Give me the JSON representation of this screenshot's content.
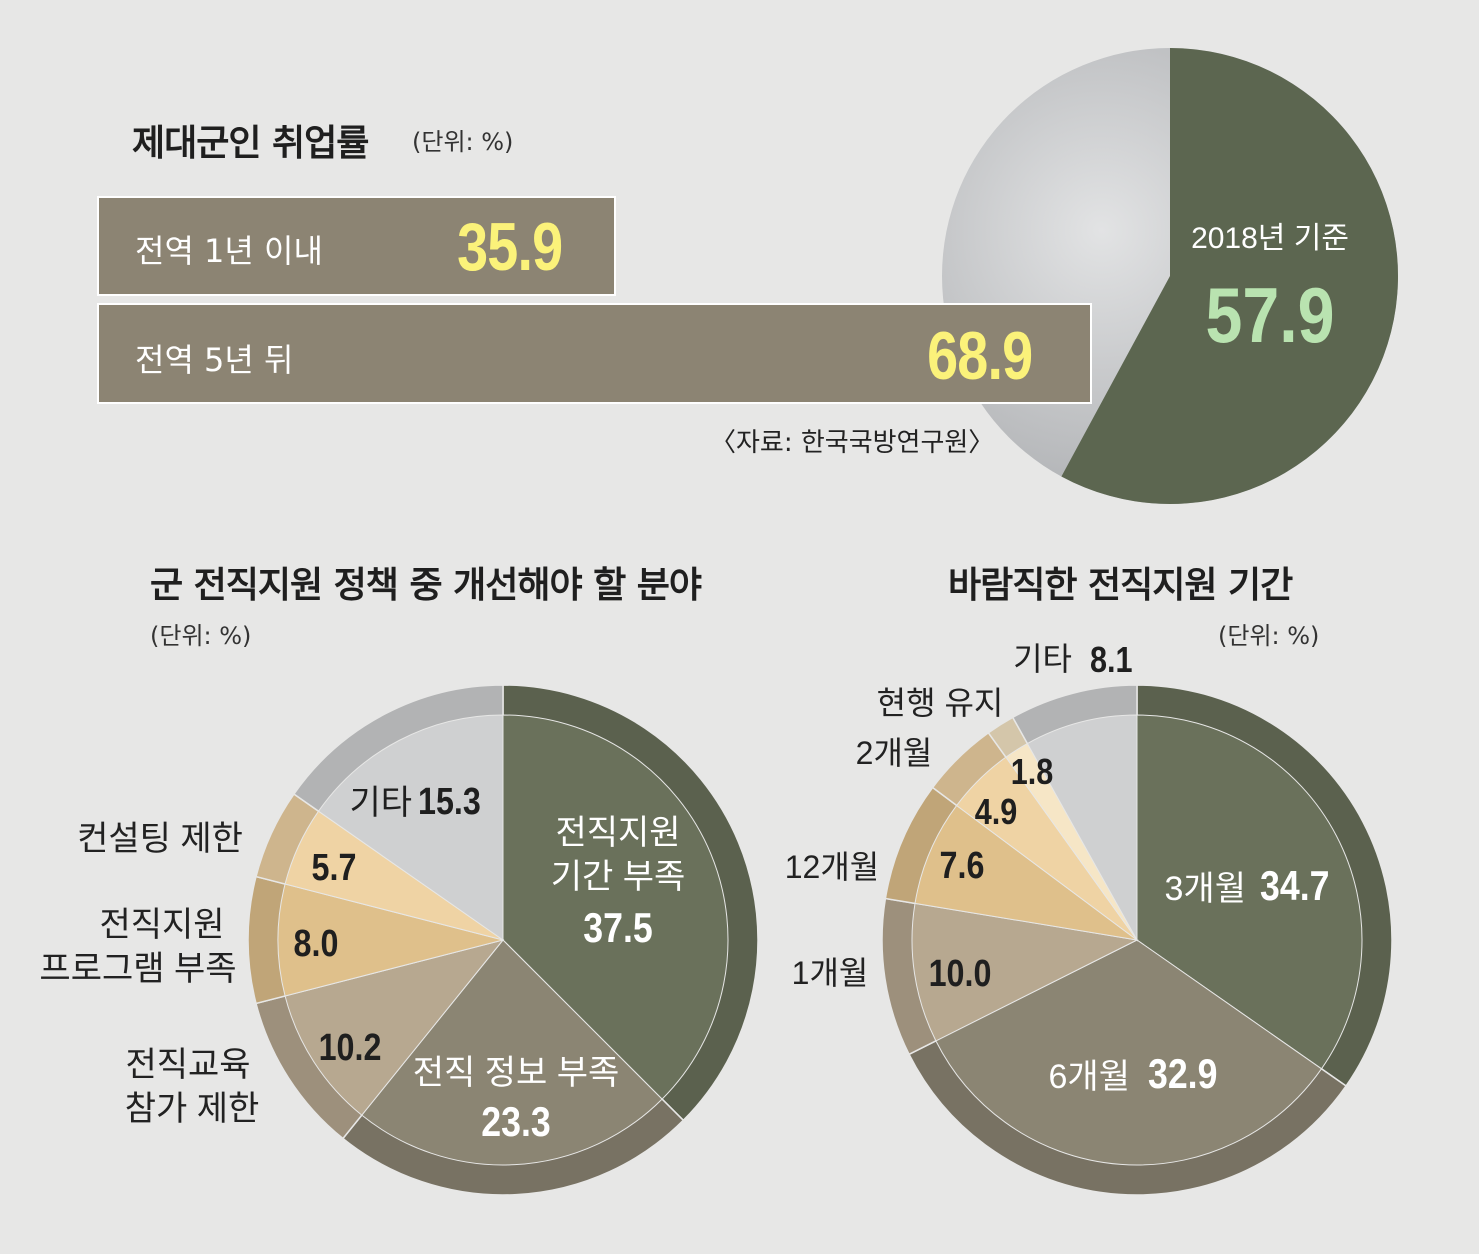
{
  "chart_data": [
    {
      "type": "bar",
      "title": "제대군인 취업률",
      "unit": "(단위: %)",
      "categories": [
        "전역 1년 이내",
        "전역 5년 뒤"
      ],
      "values": [
        35.9,
        68.9
      ],
      "source": "〈자료: 한국국방연구원〉",
      "colors": {
        "bar": "#8c8473",
        "value_text": "#fbf27a"
      }
    },
    {
      "type": "pie",
      "categories": [
        "2018년 기준",
        ""
      ],
      "values": [
        57.9,
        42.1
      ],
      "center_label": "2018년 기준",
      "center_value": "57.9",
      "colors": [
        "#5c6650",
        "#c5c6c8"
      ]
    },
    {
      "type": "pie",
      "title": "군 전직지원 정책 중 개선해야 할 분야",
      "unit": "(단위: %)",
      "slices": [
        {
          "label": "전직지원 기간 부족",
          "label_lines": [
            "전직지원",
            "기간 부족"
          ],
          "value": 37.5,
          "value_text": "37.5",
          "color": "#6a715b"
        },
        {
          "label": "전직 정보 부족",
          "label_lines": [
            "전직 정보 부족"
          ],
          "value": 23.3,
          "value_text": "23.3",
          "color": "#8b8573"
        },
        {
          "label": "전직교육 참가 제한",
          "label_lines": [
            "전직교육",
            "참가 제한"
          ],
          "value": 10.2,
          "value_text": "10.2",
          "color": "#b7a890"
        },
        {
          "label": "전직지원 프로그램 부족",
          "label_lines": [
            "전직지원",
            "프로그램 부족"
          ],
          "value": 8.0,
          "value_text": "8.0",
          "color": "#dfc08b"
        },
        {
          "label": "컨설팅 제한",
          "label_lines": [
            "컨설팅 제한"
          ],
          "value": 5.7,
          "value_text": "5.7",
          "color": "#efd3a4"
        },
        {
          "label": "기타",
          "label_lines": [
            "기타"
          ],
          "value": 15.3,
          "value_text": "15.3",
          "color": "#cfd0d1"
        }
      ]
    },
    {
      "type": "pie",
      "title": "바람직한 전직지원 기간",
      "unit": "(단위: %)",
      "slices": [
        {
          "label": "3개월",
          "value": 34.7,
          "value_text": "34.7",
          "color": "#6a715b"
        },
        {
          "label": "6개월",
          "value": 32.9,
          "value_text": "32.9",
          "color": "#8b8573"
        },
        {
          "label": "1개월",
          "value": 10.0,
          "value_text": "10.0",
          "color": "#b7a890"
        },
        {
          "label": "12개월",
          "value": 7.6,
          "value_text": "7.6",
          "color": "#dfc08b"
        },
        {
          "label": "2개월",
          "value": 4.9,
          "value_text": "4.9",
          "color": "#efd3a4"
        },
        {
          "label": "현행 유지",
          "value": 1.8,
          "value_text": "1.8",
          "color": "#f6e6c6"
        },
        {
          "label": "기타",
          "value": 8.1,
          "value_text": "8.1",
          "color": "#cfd0d1"
        }
      ]
    }
  ]
}
